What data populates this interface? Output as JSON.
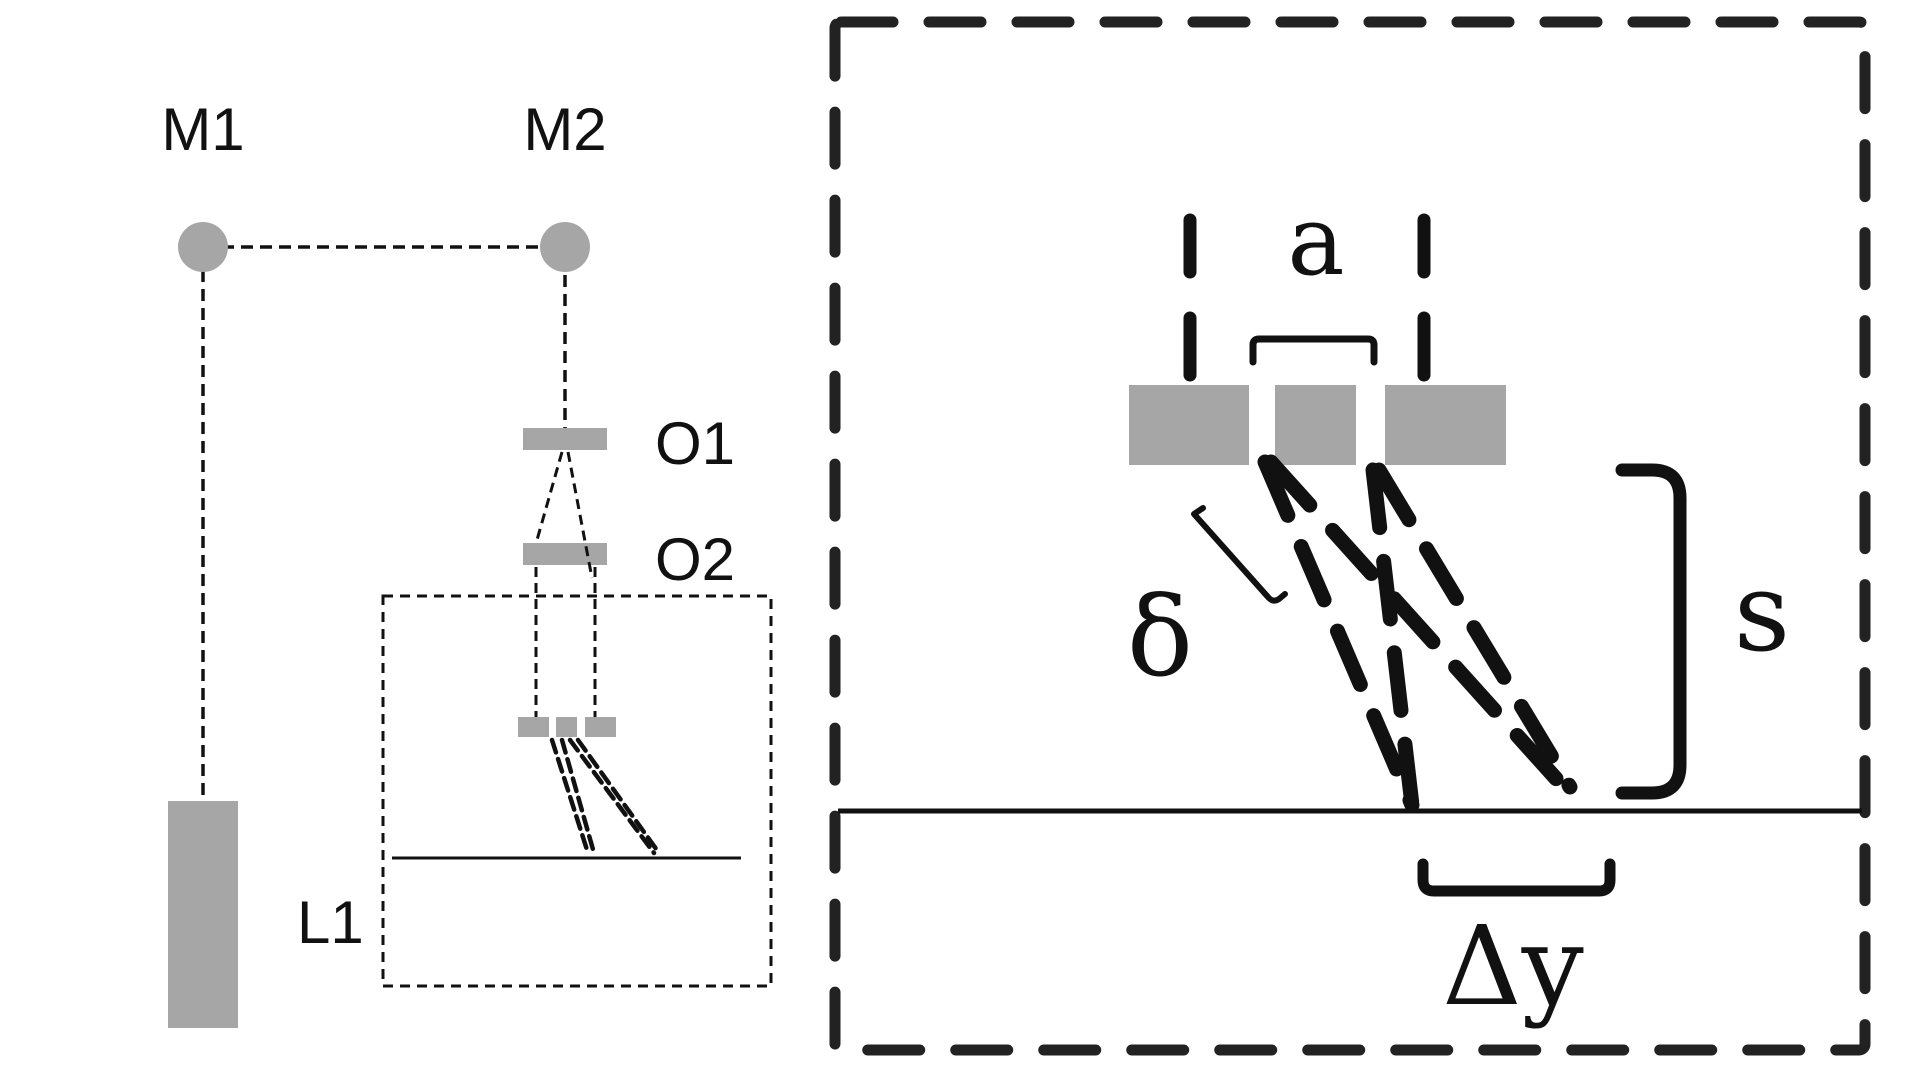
{
  "labels": {
    "m1": "M1",
    "m2": "M2",
    "o1": "O1",
    "o2": "O2",
    "l1": "L1",
    "a": "a",
    "delta": "δ",
    "s": "s",
    "delta_y": "Δy"
  },
  "colors": {
    "component_gray": "#a6a6a6",
    "line_black": "#111111",
    "background": "#ffffff"
  }
}
